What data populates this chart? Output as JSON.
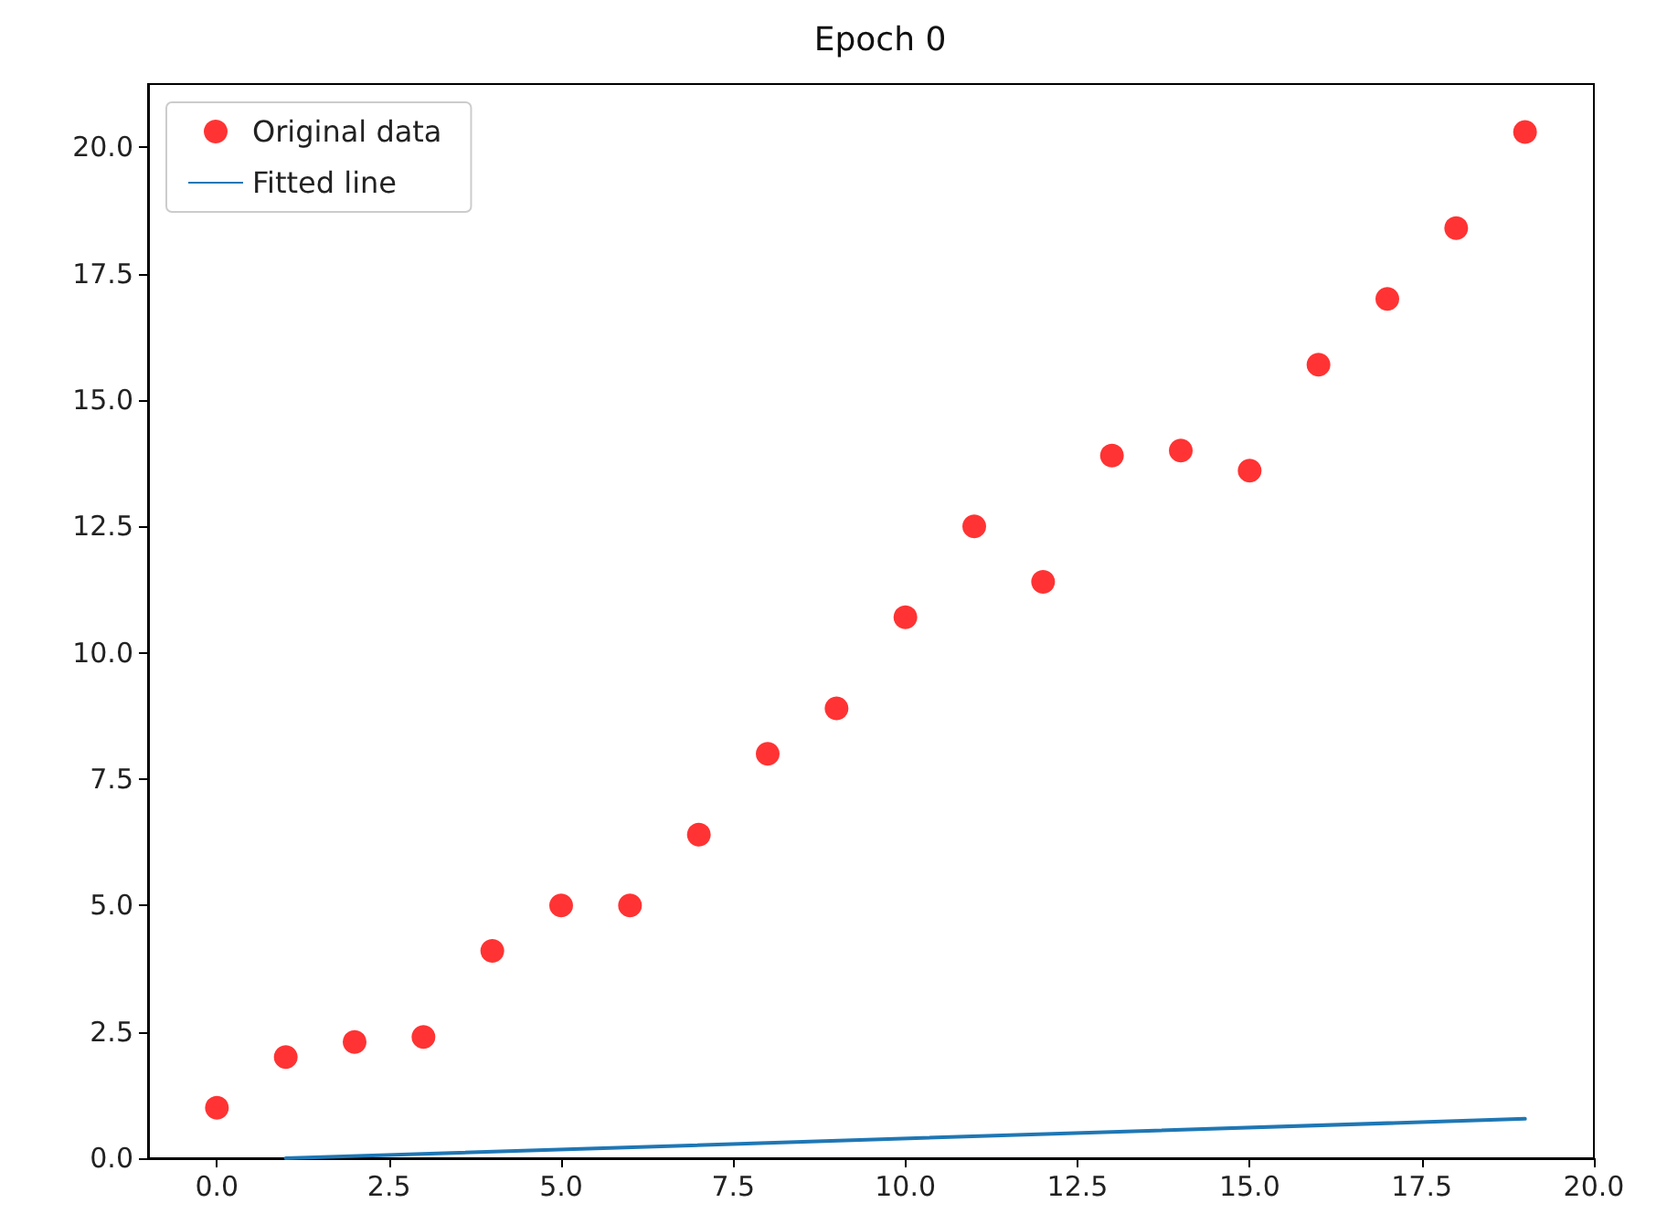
{
  "chart_data": {
    "type": "scatter",
    "title": "Epoch 0",
    "legend": "top left",
    "grid": false,
    "xlim": [
      -1,
      20
    ],
    "ylim": [
      0,
      21.25
    ],
    "xticks": [
      {
        "value": 0,
        "label": "0.0"
      },
      {
        "value": 2.5,
        "label": "2.5"
      },
      {
        "value": 5,
        "label": "5.0"
      },
      {
        "value": 7.5,
        "label": "7.5"
      },
      {
        "value": 10,
        "label": "10.0"
      },
      {
        "value": 12.5,
        "label": "12.5"
      },
      {
        "value": 15,
        "label": "15.0"
      },
      {
        "value": 17.5,
        "label": "17.5"
      },
      {
        "value": 20,
        "label": "20.0"
      }
    ],
    "yticks": [
      {
        "value": 0,
        "label": "0.0"
      },
      {
        "value": 2.5,
        "label": "2.5"
      },
      {
        "value": 5,
        "label": "5.0"
      },
      {
        "value": 7.5,
        "label": "7.5"
      },
      {
        "value": 10,
        "label": "10.0"
      },
      {
        "value": 12.5,
        "label": "12.5"
      },
      {
        "value": 15,
        "label": "15.0"
      },
      {
        "value": 17.5,
        "label": "17.5"
      },
      {
        "value": 20,
        "label": "20.0"
      }
    ],
    "series": [
      {
        "name": "Original data",
        "marker": "circle",
        "color": "#ff0000",
        "x": [
          0,
          1,
          2,
          3,
          4,
          5,
          6,
          7,
          8,
          9,
          10,
          11,
          12,
          13,
          14,
          15,
          16,
          17,
          18,
          19
        ],
        "values": [
          1.0,
          2.0,
          2.3,
          2.4,
          4.1,
          5.0,
          5.0,
          6.4,
          8.0,
          8.9,
          10.7,
          12.5,
          11.4,
          13.9,
          14.0,
          13.6,
          15.7,
          17.0,
          18.4,
          20.3
        ]
      },
      {
        "name": "Fitted line",
        "type": "line",
        "marker": "none",
        "color": "#1f77b4",
        "x": [
          1,
          19
        ],
        "values": [
          0,
          0.78
        ]
      }
    ]
  }
}
